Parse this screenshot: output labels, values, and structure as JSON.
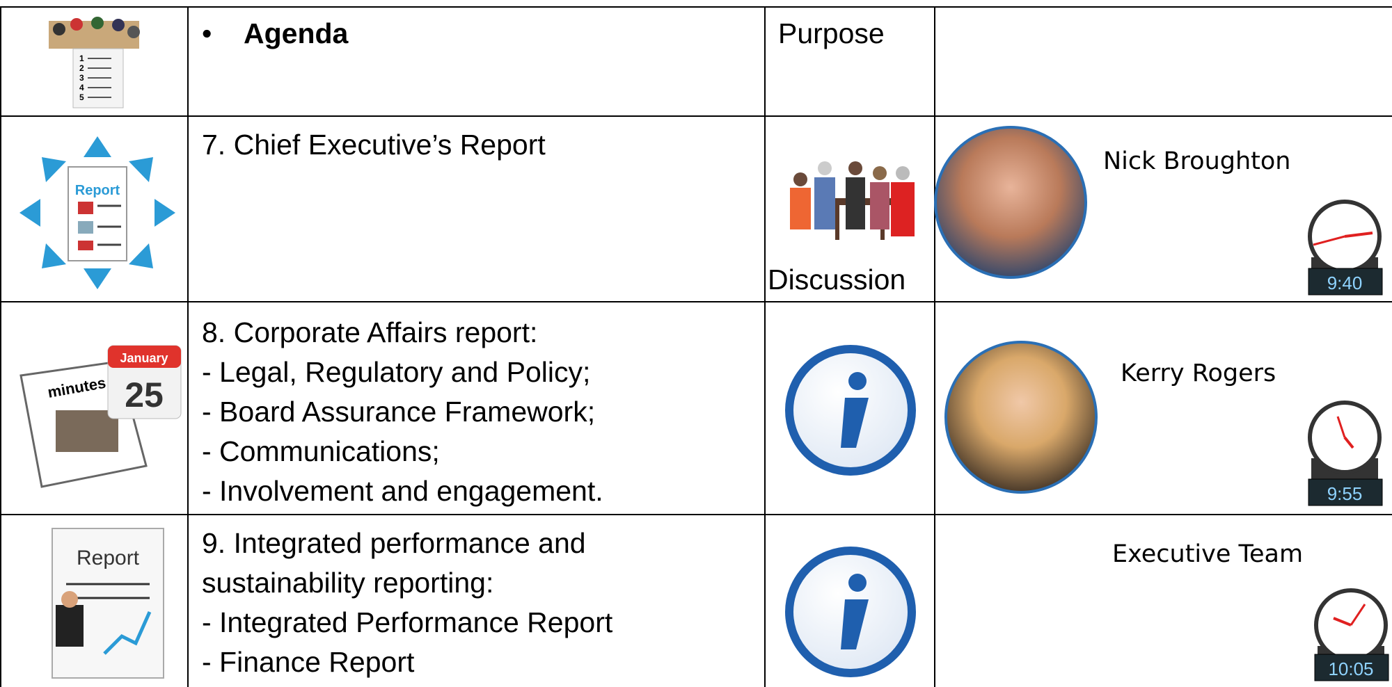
{
  "header": {
    "agenda": "Agenda",
    "purpose": "Purpose",
    "icon_numbers": [
      "1",
      "2",
      "3",
      "4",
      "5"
    ]
  },
  "rows": [
    {
      "item_lines": [
        "7. Chief Executive’s Report"
      ],
      "icon_texts": [
        "Report"
      ],
      "purpose": "Discussion",
      "presenter": "Nick Broughton",
      "time": "9:40"
    },
    {
      "item_lines": [
        "8. Corporate Affairs report:",
        "- Legal, Regulatory and Policy;",
        "- Board Assurance Framework;",
        "- Communications;",
        "- Involvement and engagement."
      ],
      "icon_texts": [
        "minutes",
        "January",
        "25"
      ],
      "presenter": "Kerry Rogers",
      "time": "9:55"
    },
    {
      "item_lines": [
        "9. Integrated performance and",
        "sustainability reporting:",
        "- Integrated Performance Report",
        "- Finance Report"
      ],
      "icon_texts": [
        "Report"
      ],
      "presenter": "Executive Team",
      "time": "10:05"
    }
  ]
}
